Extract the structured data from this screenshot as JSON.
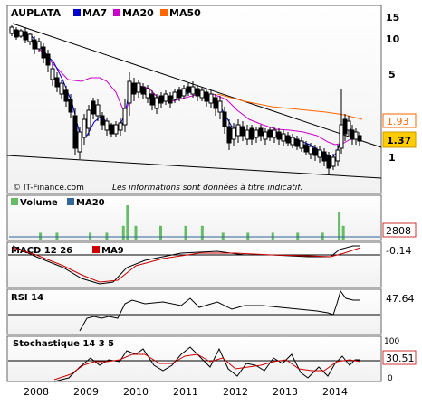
{
  "chart_data": [
    {
      "type": "candlestick",
      "panel": "price",
      "title": "AUPLATA",
      "legend": [
        {
          "name": "MA7",
          "color": "#0000cc"
        },
        {
          "name": "MA20",
          "color": "#cc00cc"
        },
        {
          "name": "MA50",
          "color": "#ff6600"
        }
      ],
      "y_ticks": [
        15,
        10,
        5,
        2,
        1
      ],
      "y_scale": "log",
      "value_badges": [
        {
          "value": "1.93",
          "color": "#ff6600"
        },
        {
          "value": "1.37",
          "color": "#ffcc00"
        }
      ],
      "closes": [
        {
          "x": "2008-01",
          "y": 13.0
        },
        {
          "x": "2008-03",
          "y": 12.0
        },
        {
          "x": "2008-05",
          "y": 10.5
        },
        {
          "x": "2008-07",
          "y": 8.0
        },
        {
          "x": "2008-09",
          "y": 5.5
        },
        {
          "x": "2008-10",
          "y": 3.5
        },
        {
          "x": "2008-11",
          "y": 1.7
        },
        {
          "x": "2009-01",
          "y": 2.3
        },
        {
          "x": "2009-03",
          "y": 3.0
        },
        {
          "x": "2009-05",
          "y": 2.5
        },
        {
          "x": "2009-07",
          "y": 2.0
        },
        {
          "x": "2009-09",
          "y": 2.3
        },
        {
          "x": "2009-11",
          "y": 4.0
        },
        {
          "x": "2010-01",
          "y": 3.2
        },
        {
          "x": "2010-04",
          "y": 3.0
        },
        {
          "x": "2010-07",
          "y": 2.6
        },
        {
          "x": "2010-10",
          "y": 3.3
        },
        {
          "x": "2011-01",
          "y": 3.4
        },
        {
          "x": "2011-04",
          "y": 3.2
        },
        {
          "x": "2011-07",
          "y": 3.0
        },
        {
          "x": "2011-10",
          "y": 2.4
        },
        {
          "x": "2012-01",
          "y": 2.2
        },
        {
          "x": "2012-04",
          "y": 1.8
        },
        {
          "x": "2012-07",
          "y": 1.9
        },
        {
          "x": "2012-10",
          "y": 2.0
        },
        {
          "x": "2013-01",
          "y": 1.9
        },
        {
          "x": "2013-04",
          "y": 1.7
        },
        {
          "x": "2013-07",
          "y": 1.6
        },
        {
          "x": "2013-10",
          "y": 1.4
        },
        {
          "x": "2013-12",
          "y": 1.1
        },
        {
          "x": "2014-01",
          "y": 1.4
        },
        {
          "x": "2014-02",
          "y": 2.2
        },
        {
          "x": "2014-03",
          "y": 1.6
        },
        {
          "x": "2014-05",
          "y": 1.37
        }
      ],
      "footer_left": "© IT-Finance.com",
      "footer_right": "Les informations sont données à titre indicatif."
    },
    {
      "type": "bar",
      "panel": "volume",
      "legend": [
        {
          "name": "Volume",
          "color": "#66bb66"
        },
        {
          "name": "MA20",
          "color": "#336699"
        }
      ],
      "badge": "2808",
      "bars": [
        {
          "x": "2008-02",
          "y": 1
        },
        {
          "x": "2008-06",
          "y": 1
        },
        {
          "x": "2009-02",
          "y": 1
        },
        {
          "x": "2009-06",
          "y": 1
        },
        {
          "x": "2009-10",
          "y": 2
        },
        {
          "x": "2009-11",
          "y": 5
        },
        {
          "x": "2010-01",
          "y": 2
        },
        {
          "x": "2010-07",
          "y": 2
        },
        {
          "x": "2011-01",
          "y": 2
        },
        {
          "x": "2011-05",
          "y": 2
        },
        {
          "x": "2011-10",
          "y": 1
        },
        {
          "x": "2012-04",
          "y": 1
        },
        {
          "x": "2012-10",
          "y": 1
        },
        {
          "x": "2013-04",
          "y": 1
        },
        {
          "x": "2013-10",
          "y": 1
        },
        {
          "x": "2014-02",
          "y": 4
        },
        {
          "x": "2014-03",
          "y": 2
        }
      ]
    },
    {
      "type": "line",
      "panel": "macd",
      "legend": [
        {
          "name": "MACD 12 26",
          "color": "#000000"
        },
        {
          "name": "MA9",
          "color": "#cc0000"
        }
      ],
      "badge": "-0.14"
    },
    {
      "type": "line",
      "panel": "rsi",
      "legend": [
        {
          "name": "RSI 14",
          "color": "#000000"
        }
      ],
      "badge": "47.64"
    },
    {
      "type": "line",
      "panel": "stochastic",
      "legend": [
        {
          "name": "Stochastique 14 3 5",
          "color": "#000000"
        }
      ],
      "badge": "30.51",
      "right_axis_ticks": [
        "100",
        "0"
      ]
    }
  ],
  "x_axis": {
    "labels": [
      "2008",
      "2009",
      "2010",
      "2011",
      "2012",
      "2013",
      "2014"
    ]
  }
}
